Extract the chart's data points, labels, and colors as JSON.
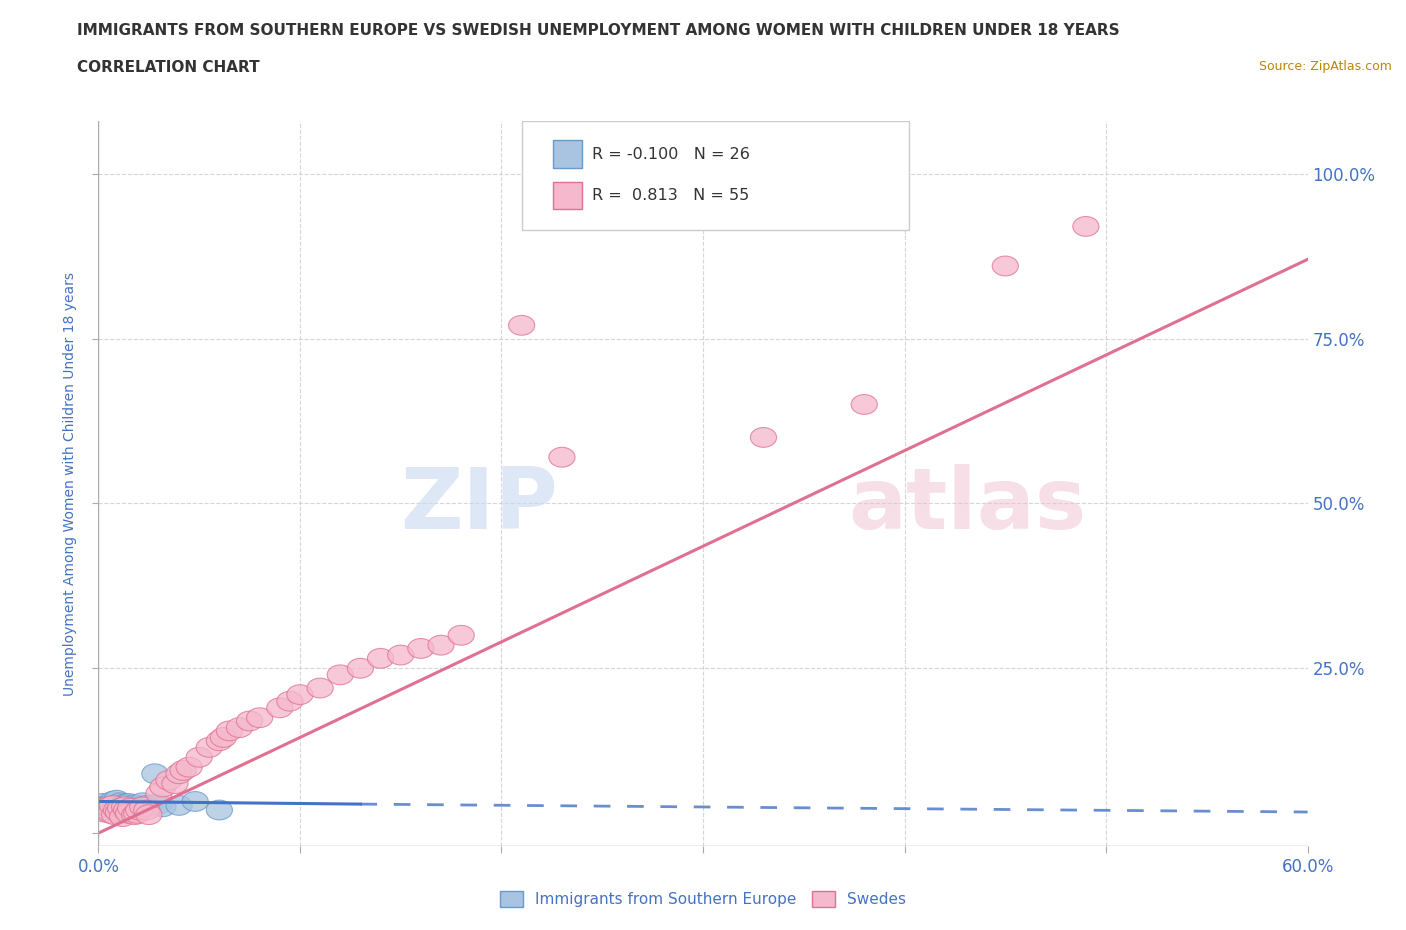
{
  "title": "IMMIGRANTS FROM SOUTHERN EUROPE VS SWEDISH UNEMPLOYMENT AMONG WOMEN WITH CHILDREN UNDER 18 YEARS",
  "subtitle": "CORRELATION CHART",
  "source": "Source: ZipAtlas.com",
  "ylabel_left": "Unemployment Among Women with Children Under 18 years",
  "x_min": 0.0,
  "x_max": 0.6,
  "y_min": -0.02,
  "y_max": 1.08,
  "blue_color": "#a8c4e0",
  "blue_edge_color": "#6699cc",
  "pink_color": "#f5b8cc",
  "pink_edge_color": "#e07090",
  "blue_line_color": "#4472c4",
  "pink_line_color": "#e07090",
  "R_blue": -0.1,
  "N_blue": 26,
  "R_pink": 0.813,
  "N_pink": 55,
  "watermark_zip": "ZIP",
  "watermark_atlas": "atlas",
  "legend_label_blue": "Immigrants from Southern Europe",
  "legend_label_pink": "Swedes",
  "axis_label_color": "#4472c4",
  "grid_color": "#cccccc",
  "background_color": "#ffffff",
  "pink_line_x0": 0.0,
  "pink_line_y0": 0.0,
  "pink_line_x1": 0.6,
  "pink_line_y1": 0.87,
  "blue_line_x0": 0.0,
  "blue_line_y0": 0.048,
  "blue_line_x1": 0.6,
  "blue_line_y1": 0.032
}
